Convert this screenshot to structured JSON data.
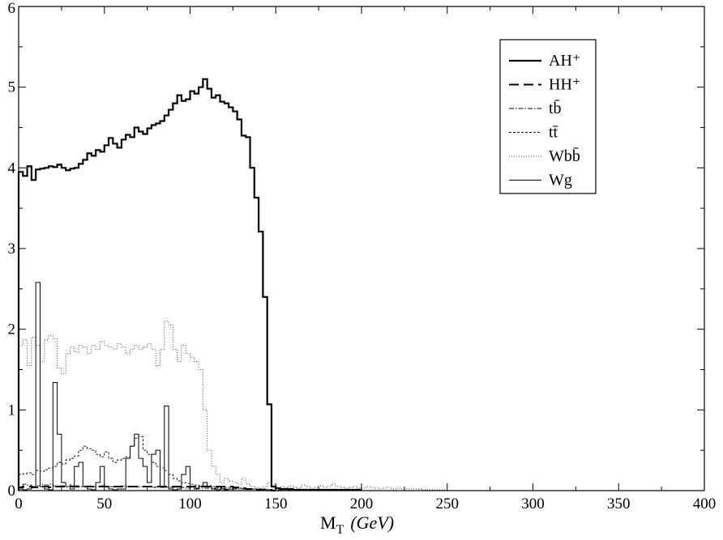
{
  "chart_data": {
    "type": "line",
    "xlim": [
      0,
      400
    ],
    "ylim": [
      0,
      6
    ],
    "x_ticks": [
      0,
      50,
      100,
      150,
      200,
      250,
      300,
      350,
      400
    ],
    "y_ticks": [
      0,
      1,
      2,
      3,
      4,
      5,
      6
    ],
    "xlabel": {
      "main": "M",
      "sub": "T",
      "unit": "(GeV)"
    },
    "ylabel": "",
    "legend_position": "top-right",
    "bin_width": 2.5,
    "series": [
      {
        "name": "AH⁺",
        "style": "solid-thick",
        "color": "#000000",
        "x_start": 0,
        "values": [
          3.95,
          3.9,
          4.02,
          3.85,
          3.98,
          3.99,
          4.0,
          4.02,
          4.01,
          4.04,
          4.0,
          3.97,
          3.99,
          4.0,
          4.05,
          4.1,
          4.18,
          4.15,
          4.22,
          4.2,
          4.28,
          4.37,
          4.3,
          4.25,
          4.35,
          4.41,
          4.38,
          4.5,
          4.45,
          4.42,
          4.49,
          4.53,
          4.55,
          4.58,
          4.65,
          4.72,
          4.8,
          4.9,
          4.83,
          4.85,
          4.95,
          4.92,
          5.0,
          5.1,
          4.98,
          4.87,
          4.9,
          4.82,
          4.8,
          4.75,
          4.7,
          4.6,
          4.4,
          4.38,
          4.0,
          3.63,
          3.21,
          2.4,
          1.07,
          0.05,
          0.03,
          0.02,
          0.02,
          0.02,
          0.01,
          0.01,
          0.01,
          0.01,
          0.01,
          0.01,
          0.01,
          0.01,
          0.01,
          0.01,
          0.01,
          0.01,
          0.01,
          0.01,
          0.01,
          0.01
        ]
      },
      {
        "name": "HH⁺",
        "style": "long-dash",
        "color": "#000000",
        "x_start": 0,
        "values": [
          0.04,
          0.05,
          0.05,
          0.04,
          0.04,
          0.05,
          0.05,
          0.04,
          0.05,
          0.05,
          0.05,
          0.05,
          0.05,
          0.05,
          0.05,
          0.05,
          0.05,
          0.05,
          0.05,
          0.05,
          0.05,
          0.05,
          0.05,
          0.05,
          0.05,
          0.05,
          0.05,
          0.05,
          0.05,
          0.05,
          0.05,
          0.05,
          0.05,
          0.05,
          0.05,
          0.05,
          0.05,
          0.05,
          0.05,
          0.05,
          0.05,
          0.05,
          0.05,
          0.05,
          0.05,
          0.05,
          0.05,
          0.05,
          0.05,
          0.05,
          0.04,
          0.04,
          0.03,
          0.02,
          0.02,
          0.01,
          0.01,
          0.01,
          0.01,
          0.0
        ]
      },
      {
        "name": "tb̄",
        "style": "dash-dot",
        "color": "#000000",
        "x_start": 0,
        "values": [
          0.05,
          0.08,
          0.07,
          0.05,
          0.06,
          0.08,
          0.07,
          0.08,
          0.06,
          0.06,
          0.06,
          0.05,
          0.07,
          0.06,
          0.05,
          0.05,
          0.06,
          0.05,
          0.05,
          0.06,
          0.05,
          0.05,
          0.05,
          0.05,
          0.06,
          0.05,
          0.05,
          0.05,
          0.05,
          0.05,
          0.05,
          0.04,
          0.05,
          0.04,
          0.04,
          0.04,
          0.04,
          0.04,
          0.04,
          0.03,
          0.04,
          0.03,
          0.03,
          0.03,
          0.03,
          0.03,
          0.03,
          0.03,
          0.02,
          0.02,
          0.02,
          0.02,
          0.02,
          0.02,
          0.02,
          0.02,
          0.01,
          0.01,
          0.01,
          0.01,
          0.01,
          0.01,
          0.01,
          0.01,
          0.01,
          0.01,
          0.01,
          0.01,
          0.01,
          0.01,
          0.0
        ]
      },
      {
        "name": "tt̄",
        "style": "short-dash",
        "color": "#000000",
        "x_start": 0,
        "values": [
          0.2,
          0.21,
          0.22,
          0.2,
          0.25,
          0.24,
          0.26,
          0.28,
          0.3,
          0.35,
          0.33,
          0.38,
          0.4,
          0.43,
          0.5,
          0.55,
          0.52,
          0.5,
          0.45,
          0.42,
          0.48,
          0.4,
          0.35,
          0.38,
          0.4,
          0.42,
          0.55,
          0.65,
          0.67,
          0.5,
          0.45,
          0.35,
          0.3,
          0.28,
          0.25,
          0.2,
          0.15,
          0.12,
          0.1,
          0.09,
          0.08,
          0.07,
          0.06,
          0.06,
          0.06,
          0.05,
          0.05,
          0.04,
          0.04,
          0.04,
          0.03,
          0.03,
          0.03,
          0.02,
          0.02,
          0.02,
          0.02,
          0.02,
          0.01,
          0.01
        ]
      },
      {
        "name": "Wbb̄",
        "style": "dotted",
        "color": "#444444",
        "x_start": 0,
        "values": [
          1.8,
          1.87,
          1.55,
          1.9,
          1.8,
          1.6,
          1.87,
          1.92,
          1.88,
          1.52,
          1.45,
          1.7,
          1.78,
          1.72,
          1.8,
          1.78,
          1.7,
          1.8,
          1.75,
          1.85,
          1.8,
          1.78,
          1.75,
          1.82,
          1.78,
          1.7,
          1.75,
          1.8,
          1.75,
          1.78,
          1.82,
          1.75,
          1.55,
          1.75,
          2.1,
          2.05,
          1.75,
          1.6,
          1.8,
          1.7,
          1.65,
          1.6,
          1.5,
          1.0,
          0.5,
          0.3,
          0.2,
          0.1,
          0.15,
          0.12,
          0.1,
          0.08,
          0.15,
          0.08,
          0.05,
          0.04,
          0.03,
          0.05,
          0.1,
          0.08,
          0.03,
          0.05,
          0.04,
          0.06,
          0.04,
          0.03,
          0.07,
          0.05,
          0.03,
          0.04,
          0.06,
          0.04,
          0.05,
          0.08,
          0.05,
          0.04,
          0.03,
          0.04,
          0.05,
          0.03,
          0.03,
          0.05,
          0.04,
          0.03,
          0.02,
          0.03,
          0.04,
          0.02,
          0.03,
          0.02,
          0.02,
          0.02,
          0.02,
          0.02,
          0.01,
          0.01,
          0.01,
          0.01,
          0.01,
          0.01
        ]
      },
      {
        "name": "Wg",
        "style": "solid-thin",
        "color": "#000000",
        "x_start": 0,
        "values": [
          0.02,
          0.01,
          0.02,
          0.05,
          2.58,
          0.05,
          0.02,
          0.01,
          1.34,
          0.7,
          0.1,
          0.05,
          0.02,
          0.3,
          0.35,
          0.05,
          0.02,
          0.01,
          0.1,
          0.3,
          0.05,
          0.02,
          0.01,
          0.02,
          0.02,
          0.4,
          0.55,
          0.7,
          0.4,
          0.3,
          0.1,
          0.45,
          0.5,
          0.05,
          1.05,
          0.02,
          0.01,
          0.02,
          0.2,
          0.3,
          0.05,
          0.02,
          0.05,
          0.1,
          0.05,
          0.02,
          0.01,
          0.02,
          0.01,
          0.02
        ]
      }
    ]
  }
}
